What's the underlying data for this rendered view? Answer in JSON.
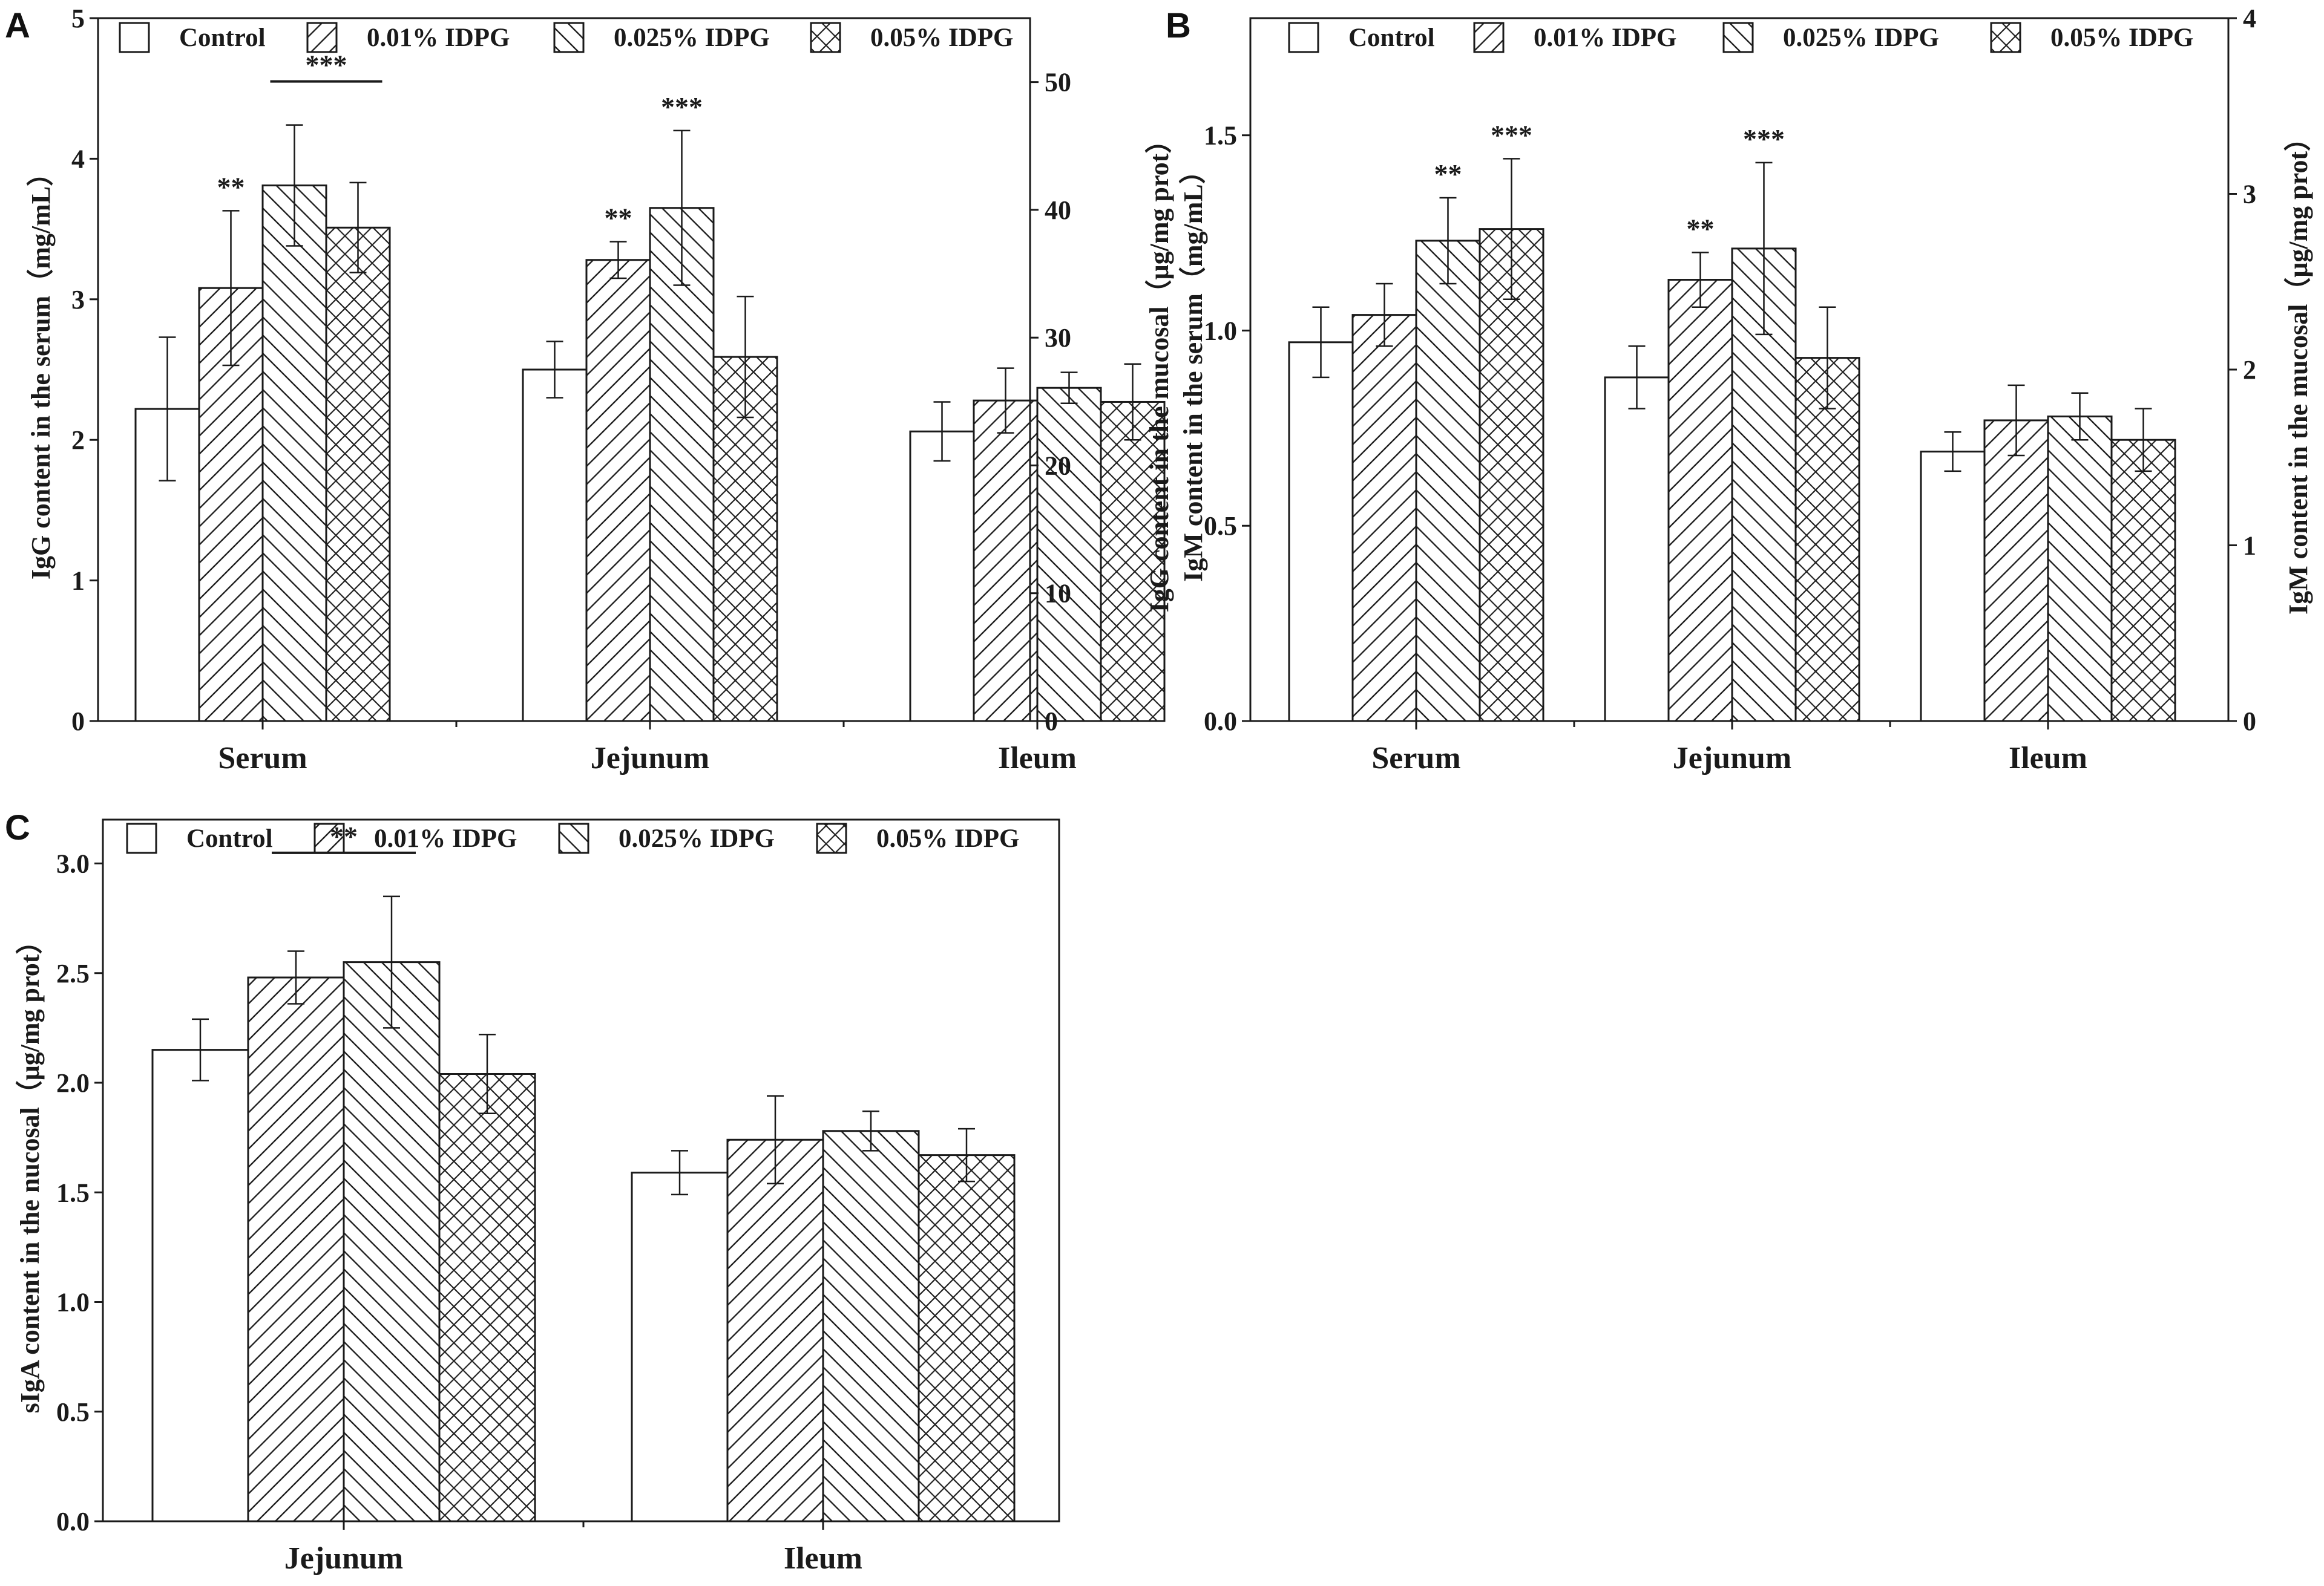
{
  "legend": [
    "Control",
    "0.01% IDPG",
    "0.025% IDPG",
    "0.05% IDPG"
  ],
  "chart_data": [
    {
      "panel": "A",
      "type": "bar",
      "categories": [
        "Serum",
        "Jejunum",
        "Ileum"
      ],
      "ylabel": "IgG content in the serum（mg/mL）",
      "ylabel_right": "IgG content in the mucosal（μg/mg prot）",
      "ylim": [
        0,
        5
      ],
      "yticks": [
        "0",
        "1",
        "2",
        "3",
        "4",
        "5"
      ],
      "ylim_right": [
        0,
        55
      ],
      "yticks_right": [
        "0",
        "10",
        "20",
        "30",
        "40",
        "50"
      ],
      "series": [
        {
          "name": "Control",
          "values": [
            2.22,
            2.5,
            2.06
          ],
          "err": [
            0.51,
            0.2,
            0.21
          ]
        },
        {
          "name": "0.01% IDPG",
          "values": [
            3.08,
            3.28,
            2.28
          ],
          "err": [
            0.55,
            0.13,
            0.23
          ]
        },
        {
          "name": "0.025% IDPG",
          "values": [
            3.81,
            3.65,
            2.37
          ],
          "err": [
            0.43,
            0.55,
            0.11
          ]
        },
        {
          "name": "0.05% IDPG",
          "values": [
            3.51,
            2.59,
            2.27
          ],
          "err": [
            0.32,
            0.43,
            0.27
          ]
        }
      ],
      "annotations": [
        {
          "text": "**",
          "category": 0,
          "series": 1
        },
        {
          "text": "***",
          "category": 0,
          "series_span": [
            2,
            3
          ]
        },
        {
          "text": "**",
          "category": 1,
          "series": 1
        },
        {
          "text": "***",
          "category": 1,
          "series": 2
        }
      ]
    },
    {
      "panel": "B",
      "type": "bar",
      "categories": [
        "Serum",
        "Jejunum",
        "Ileum"
      ],
      "ylabel": "IgM content in the serum（mg/mL）",
      "ylabel_right": "IgM content in the mucosal（μg/mg prot）",
      "ylim": [
        0,
        1.8
      ],
      "yticks": [
        "0.0",
        "0.5",
        "1.0",
        "1.5"
      ],
      "ylim_right": [
        0,
        4
      ],
      "yticks_right": [
        "0",
        "1",
        "2",
        "3",
        "4"
      ],
      "series": [
        {
          "name": "Control",
          "values": [
            0.97,
            0.88,
            0.69
          ],
          "err": [
            0.09,
            0.08,
            0.05
          ]
        },
        {
          "name": "0.01% IDPG",
          "values": [
            1.04,
            1.13,
            0.77
          ],
          "err": [
            0.08,
            0.07,
            0.09
          ]
        },
        {
          "name": "0.025% IDPG",
          "values": [
            1.23,
            1.21,
            0.78
          ],
          "err": [
            0.11,
            0.22,
            0.06
          ]
        },
        {
          "name": "0.05% IDPG",
          "values": [
            1.26,
            0.93,
            0.72
          ],
          "err": [
            0.18,
            0.13,
            0.08
          ]
        }
      ],
      "annotations": [
        {
          "text": "**",
          "category": 0,
          "series": 2
        },
        {
          "text": "***",
          "category": 0,
          "series": 3
        },
        {
          "text": "**",
          "category": 1,
          "series": 1
        },
        {
          "text": "***",
          "category": 1,
          "series": 2
        }
      ]
    },
    {
      "panel": "C",
      "type": "bar",
      "categories": [
        "Jejunum",
        "Ileum"
      ],
      "ylabel": "sIgA content in the nucosal（μg/mg prot）",
      "ylim": [
        0,
        3.2
      ],
      "yticks": [
        "0.0",
        "0.5",
        "1.0",
        "1.5",
        "2.0",
        "2.5",
        "3.0"
      ],
      "series": [
        {
          "name": "Control",
          "values": [
            2.15,
            1.59
          ],
          "err": [
            0.14,
            0.1
          ]
        },
        {
          "name": "0.01% IDPG",
          "values": [
            2.48,
            1.74
          ],
          "err": [
            0.12,
            0.2
          ]
        },
        {
          "name": "0.025% IDPG",
          "values": [
            2.55,
            1.78
          ],
          "err": [
            0.3,
            0.09
          ]
        },
        {
          "name": "0.05% IDPG",
          "values": [
            2.04,
            1.67
          ],
          "err": [
            0.18,
            0.12
          ]
        }
      ],
      "annotations": [
        {
          "text": "**",
          "category": 0,
          "series_span": [
            1,
            2
          ]
        }
      ]
    }
  ]
}
